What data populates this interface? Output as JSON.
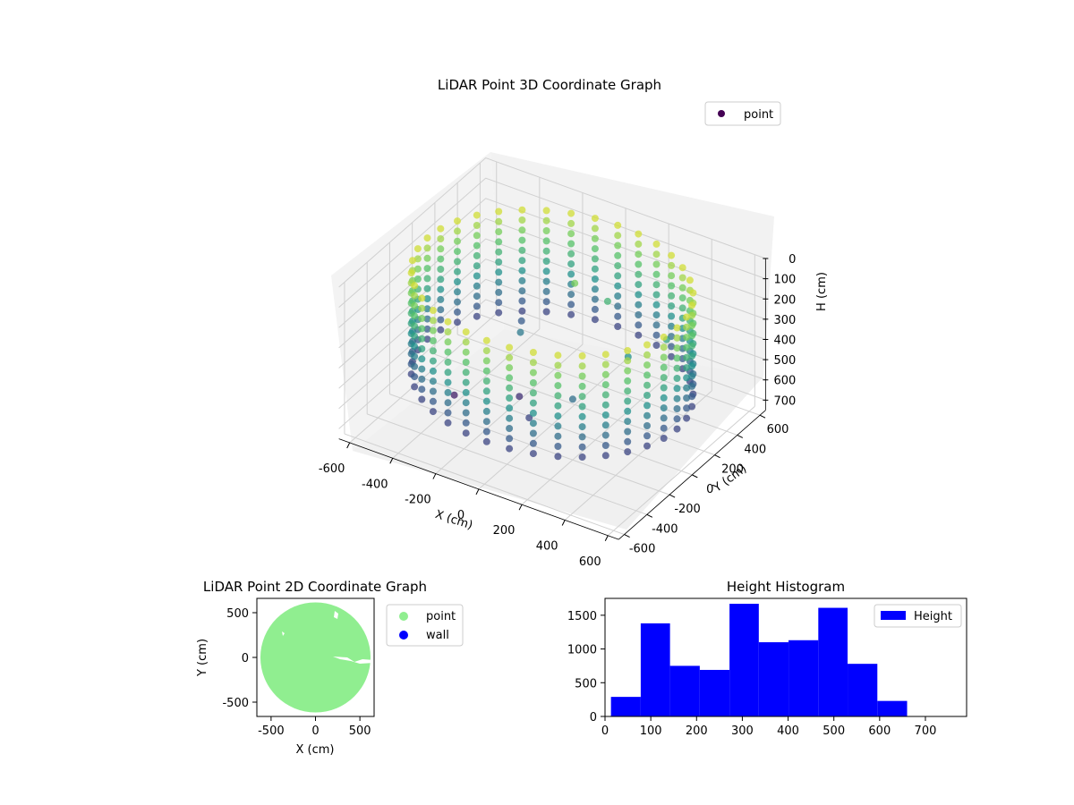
{
  "chart_data": [
    {
      "type": "scatter",
      "title": "LiDAR Point 3D Coordinate Graph",
      "xlabel": "X (cm)",
      "ylabel": "Y (cm)",
      "zlabel": "H (cm)",
      "legend": {
        "placement": "top-right",
        "entries": [
          "point"
        ]
      },
      "x_ticks": [
        -600,
        -400,
        -200,
        0,
        200,
        400,
        600
      ],
      "y_ticks": [
        -600,
        -400,
        -200,
        0,
        200,
        400,
        600
      ],
      "z_ticks": [
        0,
        100,
        200,
        300,
        400,
        500,
        600,
        700
      ],
      "xlim": [
        -650,
        650
      ],
      "ylim": [
        -650,
        650
      ],
      "zlim": [
        0,
        750
      ],
      "z_axis_inverted": true,
      "colormap": "viridis",
      "grid": true,
      "series": [
        {
          "name": "point",
          "description_points": {
            "ring_radius": 580,
            "ring_angles_deg_step": 10,
            "ring_heights": [
              50,
              100,
              150,
              200,
              250,
              300,
              350,
              400,
              450,
              500,
              550
            ],
            "interior": [
              {
                "x": 0,
                "y": 200,
                "h": 150
              },
              {
                "x": -200,
                "y": 100,
                "h": 420
              },
              {
                "x": -100,
                "y": -100,
                "h": 600
              },
              {
                "x": 100,
                "y": 300,
                "h": 250
              },
              {
                "x": 300,
                "y": 100,
                "h": 350
              },
              {
                "x": -300,
                "y": 300,
                "h": 500
              },
              {
                "x": 200,
                "y": -200,
                "h": 450
              },
              {
                "x": -350,
                "y": -200,
                "h": 640
              },
              {
                "x": 400,
                "y": 250,
                "h": 300
              },
              {
                "x": 50,
                "y": -300,
                "h": 550
              }
            ]
          }
        }
      ]
    },
    {
      "type": "scatter",
      "title": "LiDAR Point 2D Coordinate Graph",
      "xlabel": "X (cm)",
      "ylabel": "Y (cm)",
      "x_ticks": [
        -500,
        0,
        500
      ],
      "y_ticks": [
        -500,
        0,
        500
      ],
      "xlim": [
        -660,
        660
      ],
      "ylim": [
        -660,
        660
      ],
      "legend": {
        "placement": "outside-right",
        "entries": [
          "point",
          "wall"
        ]
      },
      "series": [
        {
          "name": "point",
          "color": "#90ee90",
          "region": "disk",
          "radius": 620
        },
        {
          "name": "wall",
          "color": "#0000ff",
          "values": []
        }
      ]
    },
    {
      "type": "bar",
      "title": "Height Histogram",
      "legend": {
        "placement": "top-right",
        "entries": [
          "Height"
        ]
      },
      "color": "#0000ff",
      "x_ticks": [
        0,
        100,
        200,
        300,
        400,
        500,
        600,
        700
      ],
      "y_ticks": [
        0,
        500,
        1000,
        1500
      ],
      "xlim": [
        0,
        790
      ],
      "ylim": [
        0,
        1750
      ],
      "bins": [
        {
          "x0": 13,
          "x1": 78,
          "count": 290
        },
        {
          "x0": 78,
          "x1": 142,
          "count": 1380
        },
        {
          "x0": 142,
          "x1": 207,
          "count": 750
        },
        {
          "x0": 207,
          "x1": 272,
          "count": 690
        },
        {
          "x0": 272,
          "x1": 336,
          "count": 1670
        },
        {
          "x0": 336,
          "x1": 401,
          "count": 1100
        },
        {
          "x0": 401,
          "x1": 466,
          "count": 1130
        },
        {
          "x0": 466,
          "x1": 530,
          "count": 1610
        },
        {
          "x0": 530,
          "x1": 595,
          "count": 780
        },
        {
          "x0": 595,
          "x1": 660,
          "count": 230
        }
      ],
      "series": [
        {
          "name": "Height"
        }
      ]
    }
  ]
}
